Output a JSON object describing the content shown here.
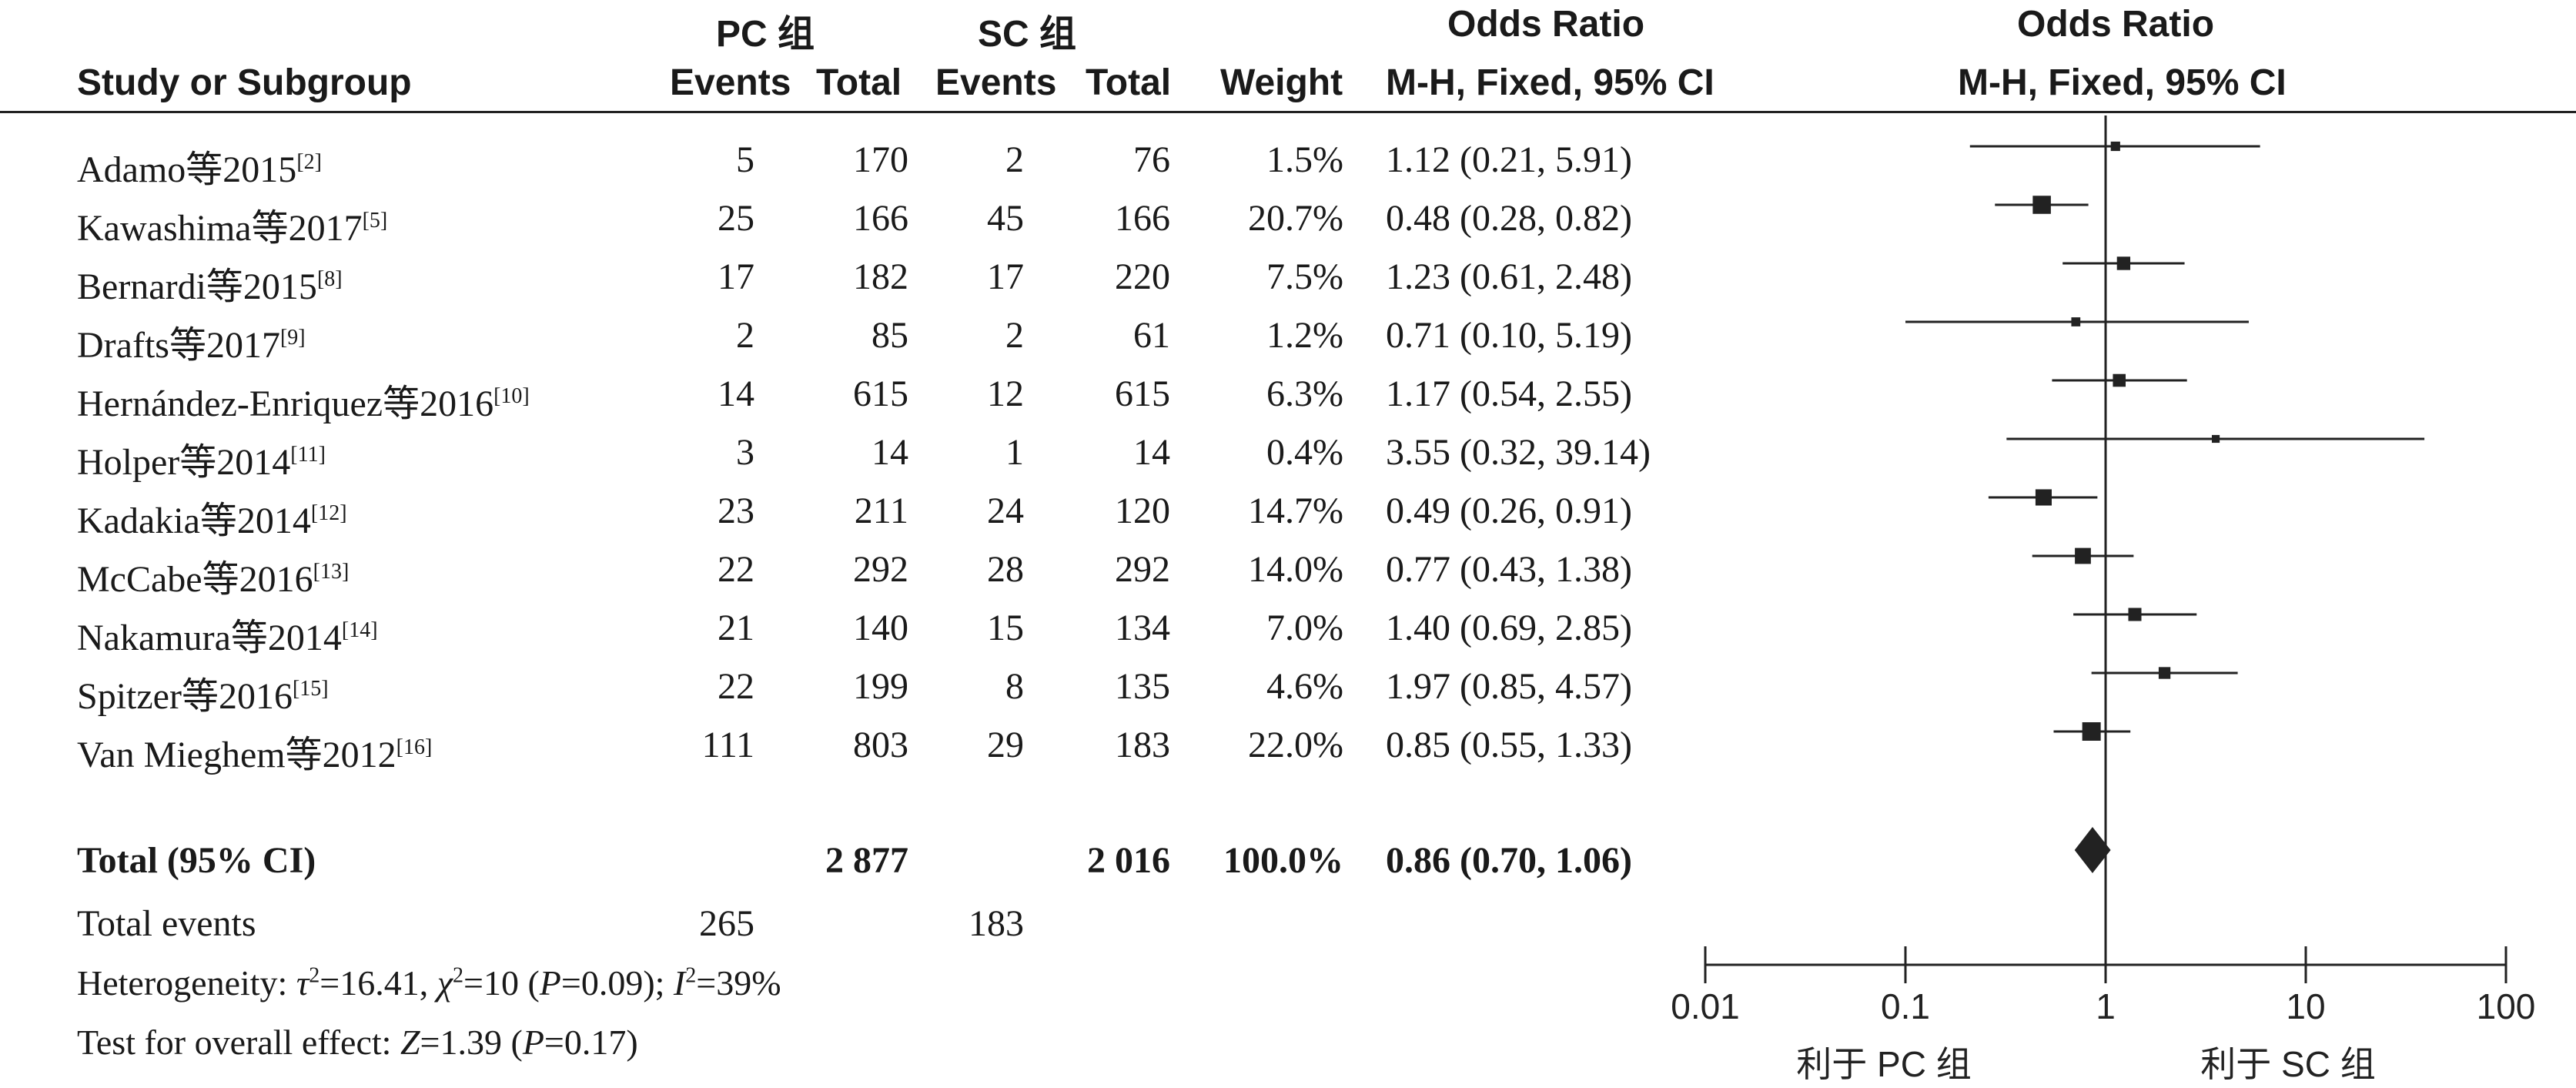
{
  "headers": {
    "study": "Study or Subgroup",
    "group1": "PC 组",
    "group2": "SC 组",
    "events": "Events",
    "total": "Total",
    "weight": "Weight",
    "or_title": "Odds Ratio",
    "or_method": "M-H, Fixed, 95% CI"
  },
  "studies": [
    {
      "name": "Adamo等2015",
      "ref": "[2]",
      "e1": "5",
      "t1": "170",
      "e2": "2",
      "t2": "76",
      "weight": "1.5%",
      "ci": "1.12 (0.21, 5.91)"
    },
    {
      "name": "Kawashima等2017",
      "ref": "[5]",
      "e1": "25",
      "t1": "166",
      "e2": "45",
      "t2": "166",
      "weight": "20.7%",
      "ci": "0.48 (0.28, 0.82)"
    },
    {
      "name": "Bernardi等2015",
      "ref": "[8]",
      "e1": "17",
      "t1": "182",
      "e2": "17",
      "t2": "220",
      "weight": "7.5%",
      "ci": "1.23 (0.61, 2.48)"
    },
    {
      "name": "Drafts等2017",
      "ref": "[9]",
      "e1": "2",
      "t1": "85",
      "e2": "2",
      "t2": "61",
      "weight": "1.2%",
      "ci": "0.71 (0.10, 5.19)"
    },
    {
      "name": "Hernández-Enriquez等2016",
      "ref": "[10]",
      "e1": "14",
      "t1": "615",
      "e2": "12",
      "t2": "615",
      "weight": "6.3%",
      "ci": "1.17 (0.54, 2.55)"
    },
    {
      "name": "Holper等2014",
      "ref": "[11]",
      "e1": "3",
      "t1": "14",
      "e2": "1",
      "t2": "14",
      "weight": "0.4%",
      "ci": "3.55 (0.32, 39.14)"
    },
    {
      "name": "Kadakia等2014",
      "ref": "[12]",
      "e1": "23",
      "t1": "211",
      "e2": "24",
      "t2": "120",
      "weight": "14.7%",
      "ci": "0.49 (0.26, 0.91)"
    },
    {
      "name": "McCabe等2016",
      "ref": "[13]",
      "e1": "22",
      "t1": "292",
      "e2": "28",
      "t2": "292",
      "weight": "14.0%",
      "ci": "0.77 (0.43, 1.38)"
    },
    {
      "name": "Nakamura等2014",
      "ref": "[14]",
      "e1": "21",
      "t1": "140",
      "e2": "15",
      "t2": "134",
      "weight": "7.0%",
      "ci": "1.40 (0.69, 2.85)"
    },
    {
      "name": "Spitzer等2016",
      "ref": "[15]",
      "e1": "22",
      "t1": "199",
      "e2": "8",
      "t2": "135",
      "weight": "4.6%",
      "ci": "1.97 (0.85, 4.57)"
    },
    {
      "name": "Van Mieghem等2012",
      "ref": "[16]",
      "e1": "111",
      "t1": "803",
      "e2": "29",
      "t2": "183",
      "weight": "22.0%",
      "ci": "0.85 (0.55, 1.33)"
    }
  ],
  "total": {
    "label": "Total (95% CI)",
    "t1": "2 877",
    "t2": "2 016",
    "weight": "100.0%",
    "ci": "0.86 (0.70, 1.06)"
  },
  "events_row": {
    "label": "Total events",
    "e1": "265",
    "e2": "183"
  },
  "footer": {
    "het_prefix": "Heterogeneity: ",
    "tau": "τ",
    "tau_val": "=16.41, ",
    "chi": "χ",
    "chi_val": "=10 (",
    "p_label": "P",
    "het_p": "=0.09);  ",
    "i2": "I",
    "i2_val": "=39%",
    "sq": "2",
    "test_prefix": "Test for overall effect: ",
    "z_label": "Z",
    "z_val": "=1.39 (",
    "z_p": "=0.17)"
  },
  "axis": {
    "favours_left": "利于 PC 组",
    "favours_right": "利于 SC 组"
  },
  "chart_data": {
    "type": "scatter",
    "title": "Odds Ratio",
    "subtitle": "M-H, Fixed, 95% CI",
    "xscale": "log",
    "xlim": [
      0.01,
      100
    ],
    "ticks": [
      0.01,
      0.1,
      1,
      10,
      100
    ],
    "tick_labels": [
      "0.01",
      "0.1",
      "1",
      "10",
      "100"
    ],
    "reference_line": 1,
    "points": [
      {
        "study": "Adamo等2015",
        "or": 1.12,
        "lo": 0.21,
        "hi": 5.91,
        "weight": 1.5
      },
      {
        "study": "Kawashima等2017",
        "or": 0.48,
        "lo": 0.28,
        "hi": 0.82,
        "weight": 20.7
      },
      {
        "study": "Bernardi等2015",
        "or": 1.23,
        "lo": 0.61,
        "hi": 2.48,
        "weight": 7.5
      },
      {
        "study": "Drafts等2017",
        "or": 0.71,
        "lo": 0.1,
        "hi": 5.19,
        "weight": 1.2
      },
      {
        "study": "Hernández-Enriquez等2016",
        "or": 1.17,
        "lo": 0.54,
        "hi": 2.55,
        "weight": 6.3
      },
      {
        "study": "Holper等2014",
        "or": 3.55,
        "lo": 0.32,
        "hi": 39.14,
        "weight": 0.4
      },
      {
        "study": "Kadakia等2014",
        "or": 0.49,
        "lo": 0.26,
        "hi": 0.91,
        "weight": 14.7
      },
      {
        "study": "McCabe等2016",
        "or": 0.77,
        "lo": 0.43,
        "hi": 1.38,
        "weight": 14.0
      },
      {
        "study": "Nakamura等2014",
        "or": 1.4,
        "lo": 0.69,
        "hi": 2.85,
        "weight": 7.0
      },
      {
        "study": "Spitzer等2016",
        "or": 1.97,
        "lo": 0.85,
        "hi": 4.57,
        "weight": 4.6
      },
      {
        "study": "Van Mieghem等2012",
        "or": 0.85,
        "lo": 0.55,
        "hi": 1.33,
        "weight": 22.0
      }
    ],
    "overall": {
      "or": 0.86,
      "lo": 0.7,
      "hi": 1.06
    }
  }
}
